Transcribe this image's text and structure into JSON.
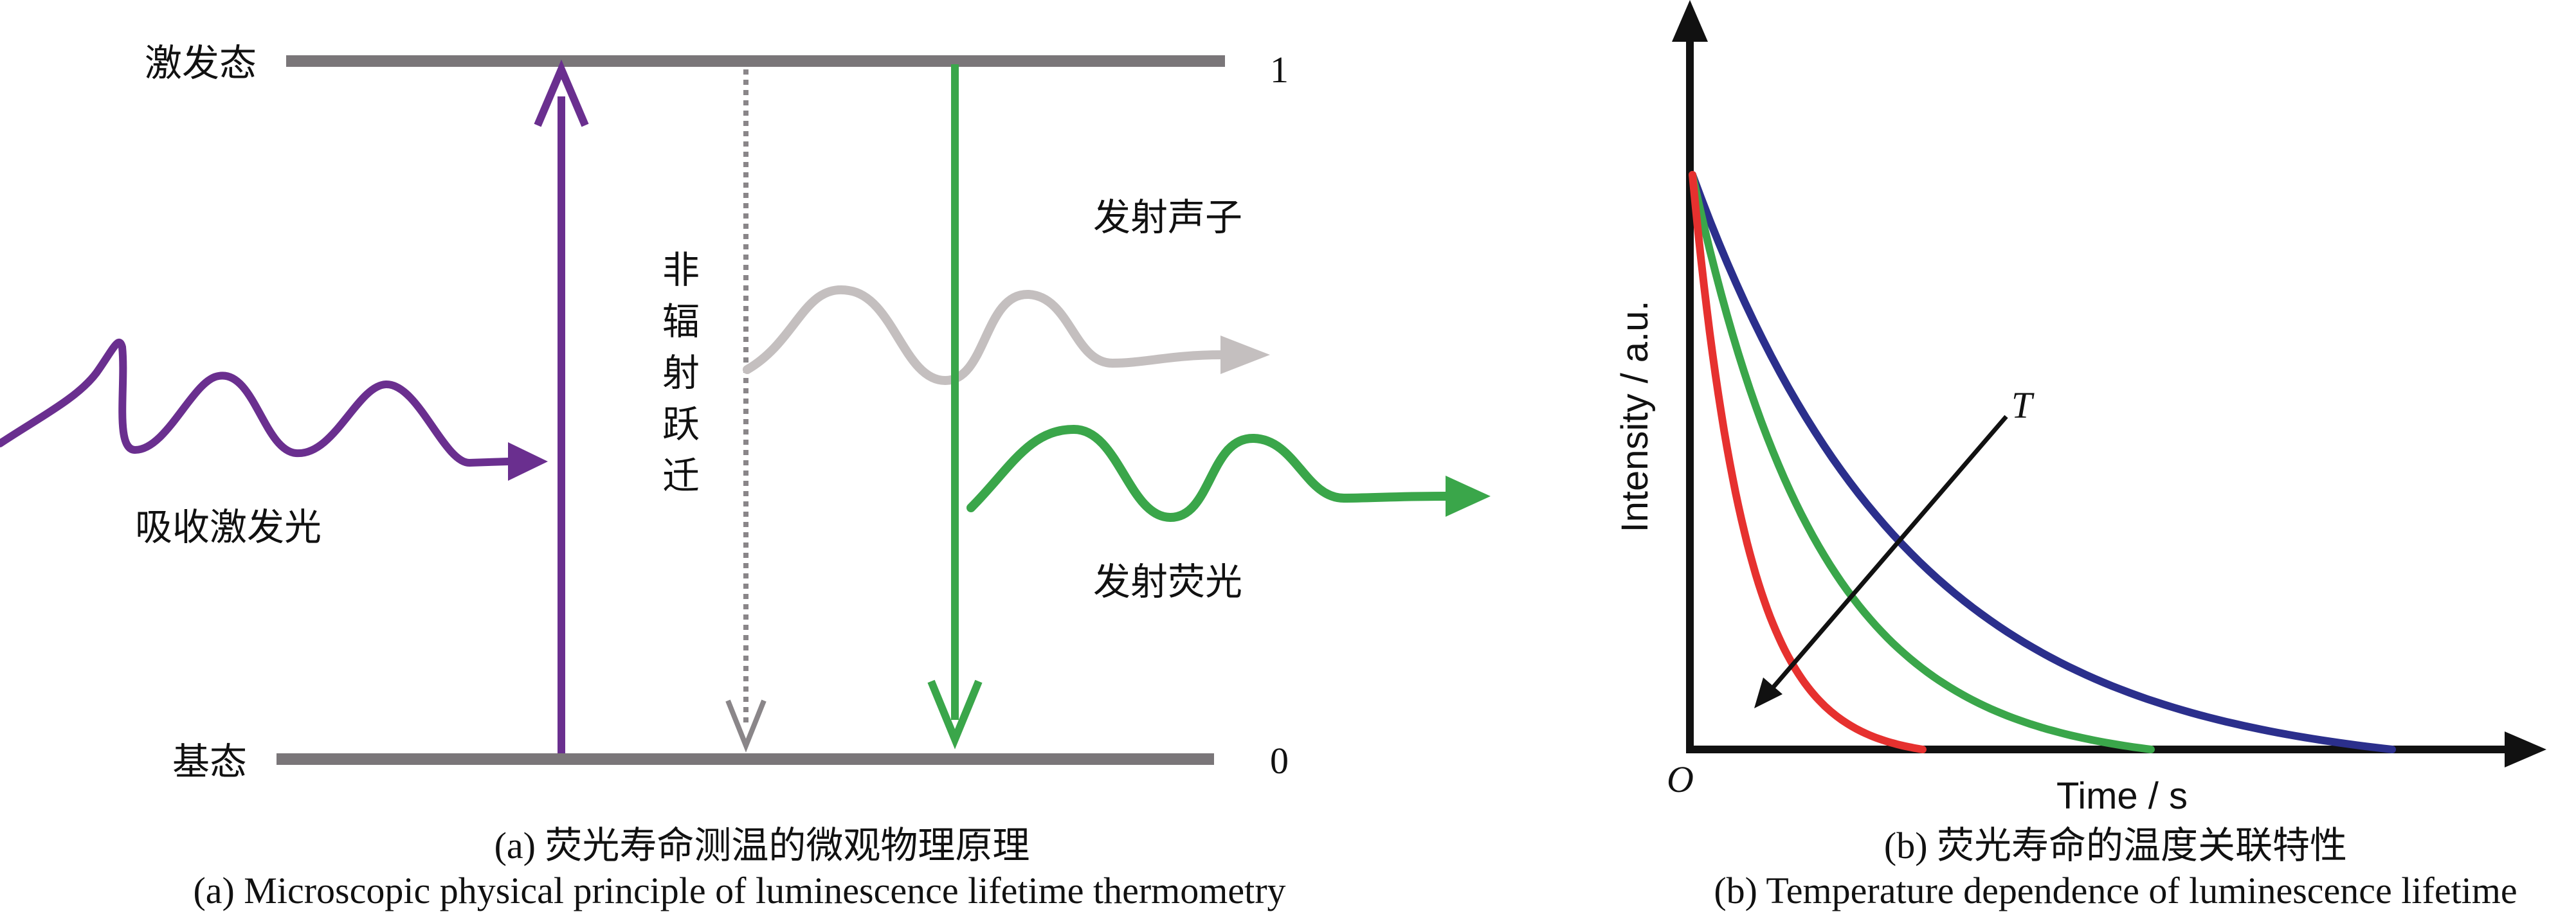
{
  "panel_a": {
    "excited_state_label": "激发态",
    "ground_state_label": "基态",
    "excited_level": "1",
    "ground_level": "0",
    "absorb_label": "吸收激发光",
    "nonradiative_chars": [
      "非",
      "辐",
      "射",
      "跃",
      "迁"
    ],
    "phonon_label": "发射声子",
    "fluorescence_label": "发射荧光",
    "caption_cn": "(a) 荧光寿命测温的微观物理原理",
    "caption_en": "(a) Microscopic physical principle of luminescence lifetime thermometry",
    "colors": {
      "level": "#7a7679",
      "absorb": "#6a2f8f",
      "nonradiative": "#8a8689",
      "phonon": "#c4bfbf",
      "fluorescence": "#3aa64a"
    }
  },
  "panel_b": {
    "ylabel": "Intensity / a.u.",
    "xlabel": "Time / s",
    "origin_label": "O",
    "temperature_label": "T",
    "caption_cn": "(b) 荧光寿命的温度关联特性",
    "caption_en": "(b) Temperature dependence of luminescence lifetime",
    "colors": {
      "curve_low_T": "#2b2f8c",
      "curve_mid_T": "#3aa64a",
      "curve_high_T": "#e6312f"
    }
  }
}
